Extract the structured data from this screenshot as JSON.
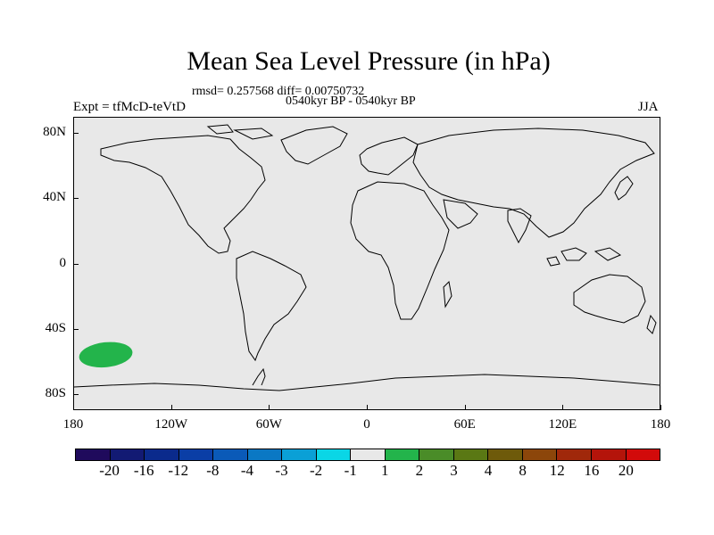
{
  "title": "Mean Sea Level Pressure (in hPa)",
  "stats": "rmsd= 0.257568 diff= 0.00750732",
  "period": "0540kyr BP - 0540kyr BP",
  "experiment": "Expt = tfMcD-teVtD",
  "season": "JJA",
  "lat_labels": [
    "80N",
    "40N",
    "0",
    "40S",
    "80S"
  ],
  "lon_labels": [
    "180",
    "120W",
    "60W",
    "0",
    "60E",
    "120E",
    "180"
  ],
  "colorbar": {
    "colors": [
      "#1f0a5c",
      "#121a73",
      "#0a2a8c",
      "#0a3ea6",
      "#0a5ab8",
      "#0a78c4",
      "#0aa0d6",
      "#0ad6e6",
      "#e8e8e8",
      "#23b44b",
      "#4a8c28",
      "#5a7814",
      "#6e5a0a",
      "#8c460a",
      "#a0280a",
      "#b4140a",
      "#d20a0a"
    ],
    "labels": [
      "-20",
      "-16",
      "-12",
      "-8",
      "-4",
      "-3",
      "-2",
      "-1",
      "1",
      "2",
      "3",
      "4",
      "8",
      "12",
      "16",
      "20"
    ]
  },
  "anomaly": {
    "lon": -160,
    "lat": -56,
    "color": "#23b44b"
  },
  "colors": {
    "land_outline": "#000000",
    "background": "#e8e8e8"
  }
}
